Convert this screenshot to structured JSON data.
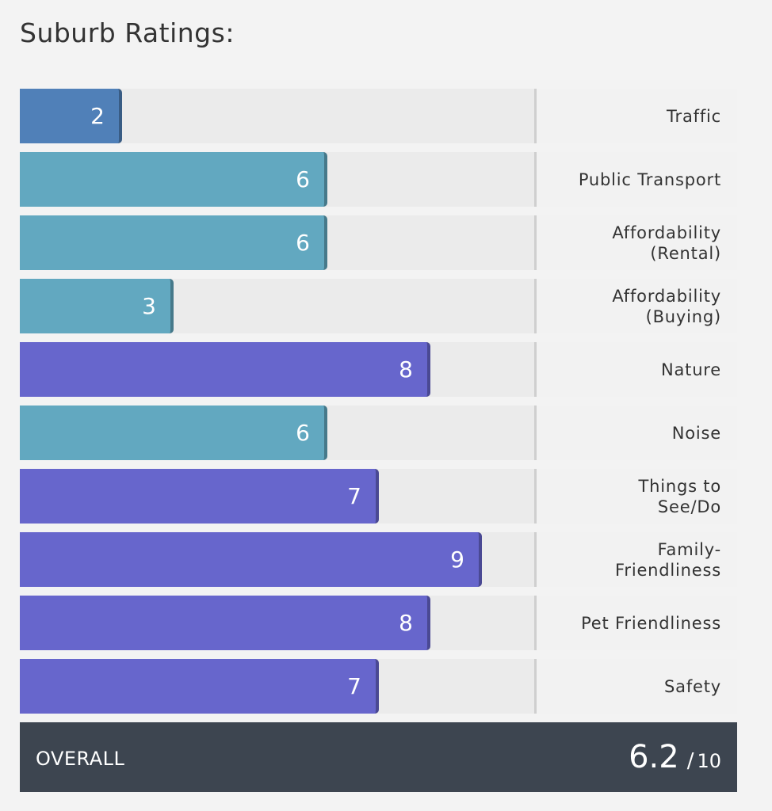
{
  "title": "Suburb Ratings:",
  "colors": {
    "low": "#5080b8",
    "mid": "#62a8c0",
    "high": "#6766cc"
  },
  "chart_data": {
    "type": "bar",
    "orientation": "horizontal",
    "xlim": [
      0,
      10
    ],
    "categories": [
      "Traffic",
      "Public Transport",
      "Affordability\n(Rental)",
      "Affordability\n(Buying)",
      "Nature",
      "Noise",
      "Things to\nSee/Do",
      "Family-\nFriendliness",
      "Pet Friendliness",
      "Safety"
    ],
    "values": [
      2,
      6,
      6,
      3,
      8,
      6,
      7,
      9,
      8,
      7
    ]
  },
  "overall": {
    "label": "OVERALL",
    "score": "6.2",
    "slash": "/",
    "max": "10"
  }
}
